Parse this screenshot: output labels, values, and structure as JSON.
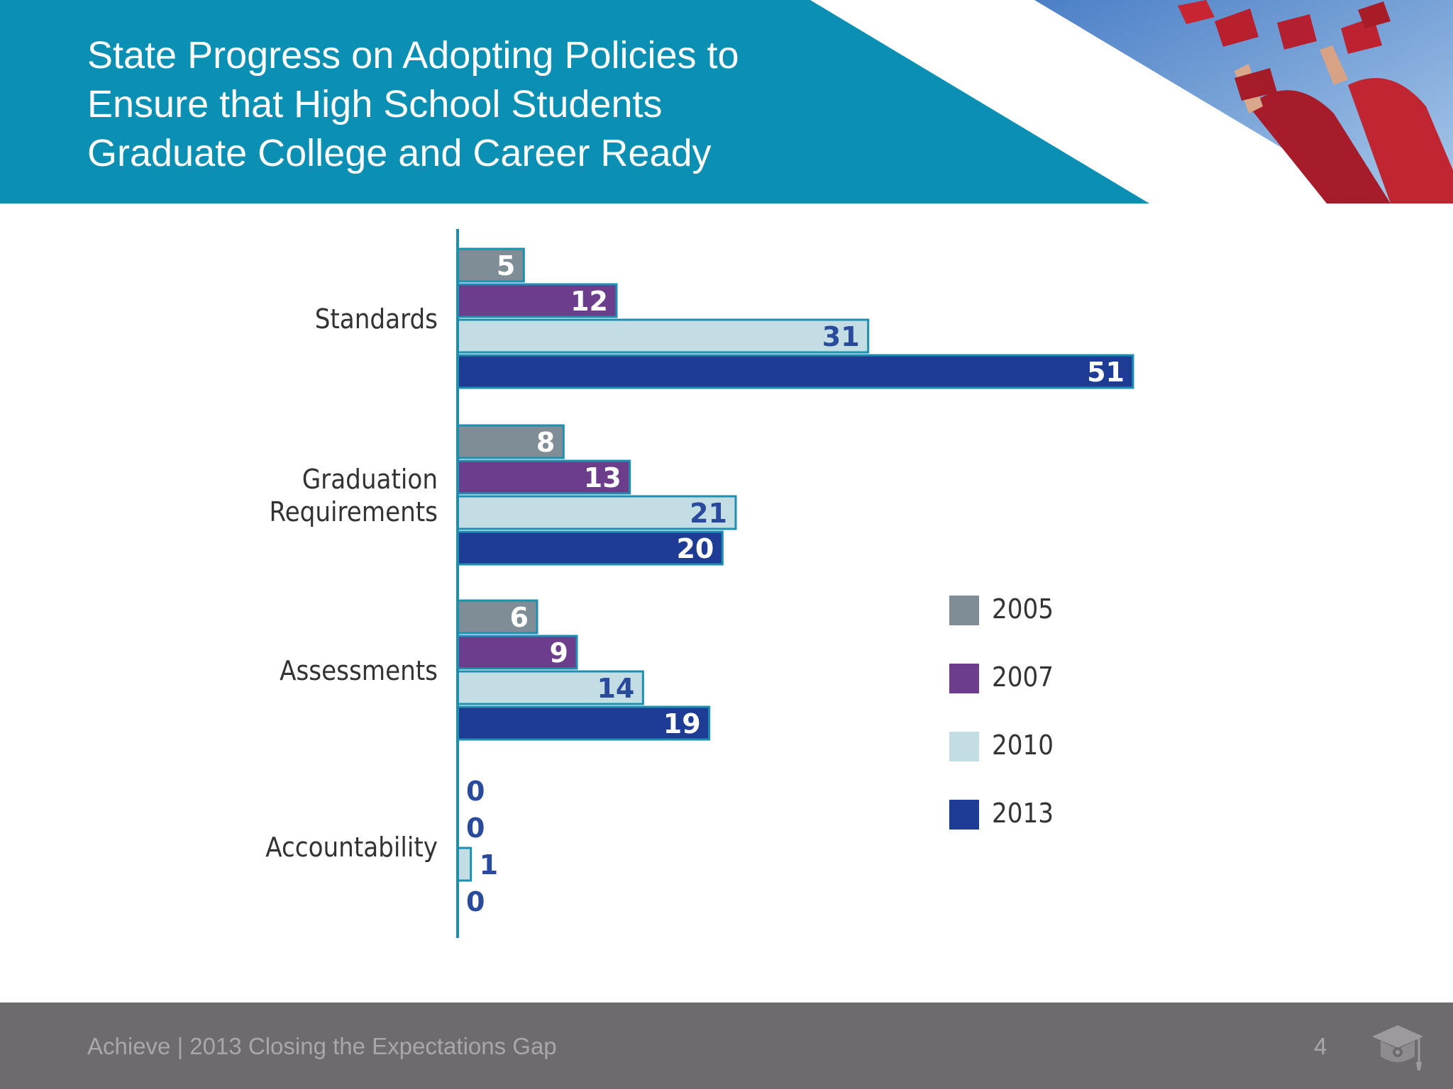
{
  "header": {
    "title_lines": [
      "State Progress on Adopting Policies to",
      "Ensure that High School Students",
      "Graduate College and Career Ready"
    ],
    "accent_color": "#0b8fb3",
    "photo_icon": "graduation-caps-photo"
  },
  "chart_data": {
    "type": "bar",
    "orientation": "horizontal",
    "categories": [
      "Standards",
      "Graduation Requirements",
      "Assessments",
      "Accountability"
    ],
    "category_label_lines": [
      [
        "Standards"
      ],
      [
        "Graduation",
        "Requirements"
      ],
      [
        "Assessments"
      ],
      [
        "Accountability"
      ]
    ],
    "series": [
      {
        "name": "2005",
        "color": "#7f8e96",
        "values": [
          5,
          8,
          6,
          0
        ]
      },
      {
        "name": "2007",
        "color": "#6b3d8a",
        "values": [
          12,
          13,
          9,
          0
        ]
      },
      {
        "name": "2010",
        "color": "#c3dde5",
        "values": [
          31,
          21,
          14,
          1
        ]
      },
      {
        "name": "2013",
        "color": "#1f3c94",
        "values": [
          51,
          20,
          19,
          0
        ]
      }
    ],
    "xlim": [
      0,
      51
    ],
    "grid": false,
    "legend_position": "right",
    "label_color_light": "#ffffff",
    "label_color_dark": "#2a4a9c"
  },
  "footer": {
    "text": "Achieve | 2013 Closing the Expectations Gap",
    "page_number": "4",
    "logo_icon": "graduation-cap-logo-icon"
  }
}
